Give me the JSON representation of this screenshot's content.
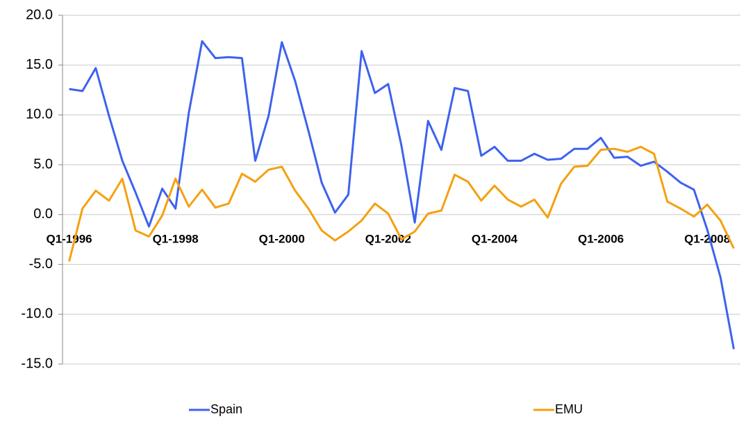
{
  "chart_data": {
    "type": "line",
    "categories": [
      "Q1-1996",
      null,
      null,
      null,
      null,
      null,
      null,
      null,
      "Q1-1998",
      null,
      null,
      null,
      null,
      null,
      null,
      null,
      "Q1-2000",
      null,
      null,
      null,
      null,
      null,
      null,
      null,
      "Q1-2002",
      null,
      null,
      null,
      null,
      null,
      null,
      null,
      "Q1-2004",
      null,
      null,
      null,
      null,
      null,
      null,
      null,
      "Q1-2006",
      null,
      null,
      null,
      null,
      null,
      null,
      null,
      "Q1-2008",
      null,
      null
    ],
    "series": [
      {
        "name": "Spain",
        "color": "#3d62ee",
        "values": [
          12.6,
          12.4,
          14.7,
          9.9,
          5.4,
          2.2,
          -1.2,
          2.6,
          0.6,
          10.2,
          17.4,
          15.7,
          15.8,
          15.7,
          5.4,
          9.9,
          17.3,
          13.4,
          8.4,
          3.2,
          0.2,
          2.0,
          16.4,
          12.2,
          13.1,
          6.9,
          -0.8,
          9.4,
          6.5,
          12.7,
          12.4,
          5.9,
          6.8,
          5.4,
          5.4,
          6.1,
          5.5,
          5.6,
          6.6,
          6.6,
          7.7,
          5.7,
          5.8,
          4.9,
          5.3,
          4.3,
          3.2,
          2.5,
          -1.5,
          -6.3,
          -13.5
        ]
      },
      {
        "name": "EMU",
        "color": "#f5a00f",
        "values": [
          -4.7,
          0.6,
          2.4,
          1.4,
          3.6,
          -1.6,
          -2.2,
          -0.1,
          3.6,
          0.8,
          2.5,
          0.7,
          1.1,
          4.1,
          3.3,
          4.5,
          4.8,
          2.4,
          0.6,
          -1.6,
          -2.6,
          -1.7,
          -0.6,
          1.1,
          0.1,
          -2.5,
          -1.7,
          0.1,
          0.4,
          4.0,
          3.3,
          1.4,
          2.9,
          1.5,
          0.8,
          1.5,
          -0.3,
          3.1,
          4.8,
          4.9,
          6.5,
          6.6,
          6.3,
          6.8,
          6.1,
          1.3,
          0.6,
          -0.2,
          1.0,
          -0.6,
          -3.4
        ]
      }
    ],
    "ylim": [
      -15,
      20
    ],
    "yticks": [
      {
        "value": -15,
        "label": "-15.0"
      },
      {
        "value": -10,
        "label": "-10.0"
      },
      {
        "value": -5,
        "label": "-5.0"
      },
      {
        "value": 0,
        "label": "0.0"
      },
      {
        "value": 5,
        "label": "5.0"
      },
      {
        "value": 10,
        "label": "10.0"
      },
      {
        "value": 15,
        "label": "15.0"
      },
      {
        "value": 20,
        "label": "20.0"
      }
    ],
    "grid": true,
    "legend": "bottom"
  }
}
